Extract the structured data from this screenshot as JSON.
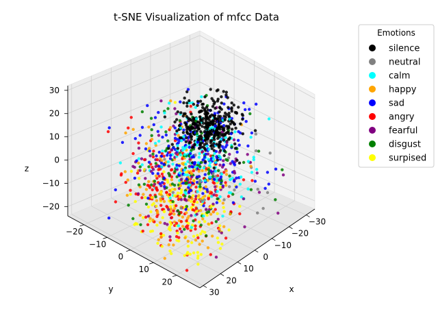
{
  "chart_data": {
    "type": "scatter",
    "projection": "3d",
    "title": "t-SNE Visualization of mfcc Data",
    "xlabel": "x",
    "ylabel": "y",
    "zlabel": "z",
    "xlim": [
      -35,
      32
    ],
    "ylim": [
      -27,
      30
    ],
    "zlim": [
      -24,
      32
    ],
    "x_ticks": [
      -30,
      -20,
      -10,
      0,
      10,
      20,
      30
    ],
    "y_ticks": [
      -20,
      -10,
      0,
      10,
      20
    ],
    "z_ticks": [
      -20,
      -10,
      0,
      10,
      20,
      30
    ],
    "grid": true,
    "legend": {
      "title": "Emotions",
      "placement": "outside-right"
    },
    "series": [
      {
        "name": "silence",
        "color": "#000000",
        "clusters": [
          {
            "center": [
              -20,
              -8,
              5
            ],
            "spread": [
              6,
              5,
              5
            ],
            "count": 380
          }
        ]
      },
      {
        "name": "neutral",
        "color": "#808080",
        "clusters": [
          {
            "center": [
              -5,
              5,
              -5
            ],
            "spread": [
              12,
              10,
              10
            ],
            "count": 40
          }
        ]
      },
      {
        "name": "calm",
        "color": "#00ffff",
        "clusters": [
          {
            "center": [
              -12,
              -2,
              -2
            ],
            "spread": [
              9,
              9,
              9
            ],
            "count": 110
          },
          {
            "center": [
              10,
              10,
              5
            ],
            "spread": [
              9,
              8,
              10
            ],
            "count": 50
          }
        ]
      },
      {
        "name": "happy",
        "color": "#ffa500",
        "clusters": [
          {
            "center": [
              15,
              8,
              0
            ],
            "spread": [
              10,
              9,
              12
            ],
            "count": 140
          }
        ]
      },
      {
        "name": "sad",
        "color": "#0000ff",
        "clusters": [
          {
            "center": [
              -5,
              -2,
              3
            ],
            "spread": [
              12,
              11,
              10
            ],
            "count": 190
          }
        ]
      },
      {
        "name": "angry",
        "color": "#ff0000",
        "clusters": [
          {
            "center": [
              18,
              10,
              0
            ],
            "spread": [
              9,
              9,
              12
            ],
            "count": 180
          }
        ]
      },
      {
        "name": "fearful",
        "color": "#800080",
        "clusters": [
          {
            "center": [
              5,
              5,
              2
            ],
            "spread": [
              12,
              11,
              11
            ],
            "count": 120
          }
        ]
      },
      {
        "name": "disgust",
        "color": "#008000",
        "clusters": [
          {
            "center": [
              0,
              2,
              0
            ],
            "spread": [
              12,
              11,
              11
            ],
            "count": 120
          }
        ]
      },
      {
        "name": "surpised",
        "color": "#ffff00",
        "clusters": [
          {
            "center": [
              20,
              12,
              -5
            ],
            "spread": [
              8,
              8,
              11
            ],
            "count": 150
          }
        ]
      }
    ]
  }
}
